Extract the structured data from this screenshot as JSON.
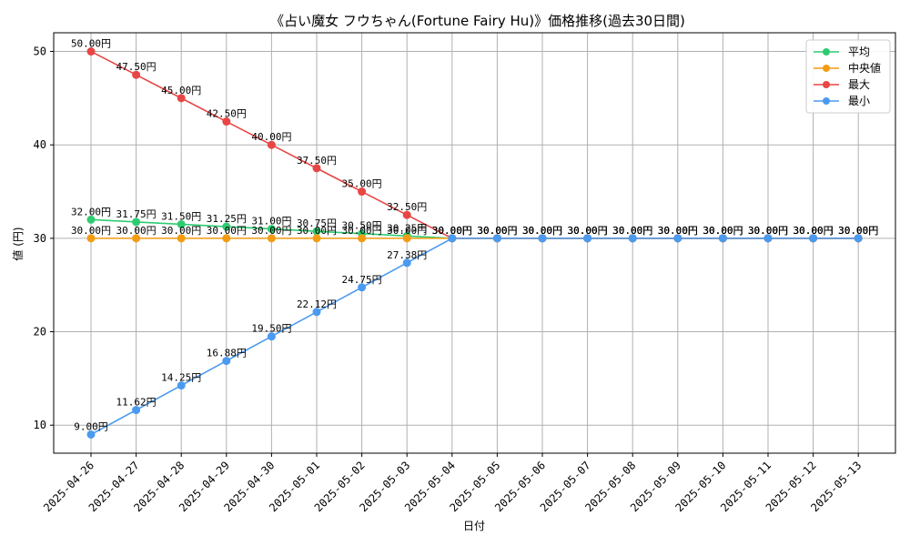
{
  "chart_data": {
    "type": "line",
    "title": "《占い魔女 フウちゃん(Fortune Fairy Hu)》価格推移(過去30日間)",
    "xlabel": "日付",
    "ylabel": "値 (円)",
    "ylim": [
      7,
      52
    ],
    "yticks": [
      10,
      20,
      30,
      40,
      50
    ],
    "grid": true,
    "legend_position": "top-right",
    "categories": [
      "2025-04-26",
      "2025-04-27",
      "2025-04-28",
      "2025-04-29",
      "2025-04-30",
      "2025-05-01",
      "2025-05-02",
      "2025-05-03",
      "2025-05-04",
      "2025-05-05",
      "2025-05-06",
      "2025-05-07",
      "2025-05-08",
      "2025-05-09",
      "2025-05-10",
      "2025-05-11",
      "2025-05-12",
      "2025-05-13"
    ],
    "series": [
      {
        "name": "平均",
        "color": "#2ecc71",
        "values": [
          32.0,
          31.75,
          31.5,
          31.25,
          31.0,
          30.75,
          30.5,
          30.25,
          30.0,
          30.0,
          30.0,
          30.0,
          30.0,
          30.0,
          30.0,
          30.0,
          30.0,
          30.0
        ],
        "labels": [
          "32.00円",
          "31.75円",
          "31.50円",
          "31.25円",
          "31.00円",
          "30.75円",
          "30.50円",
          "30.25円",
          "30.00円",
          "30.00円",
          "30.00円",
          "30.00円",
          "30.00円",
          "30.00円",
          "30.00円",
          "30.00円",
          "30.00円",
          "30.00円"
        ]
      },
      {
        "name": "中央値",
        "color": "#f39c12",
        "values": [
          30.0,
          30.0,
          30.0,
          30.0,
          30.0,
          30.0,
          30.0,
          30.0,
          30.0,
          30.0,
          30.0,
          30.0,
          30.0,
          30.0,
          30.0,
          30.0,
          30.0,
          30.0
        ],
        "labels": [
          "30.00円",
          "30.00円",
          "30.00円",
          "30.00円",
          "30.00円",
          "30.00円",
          "30.00円",
          "30.00円",
          "30.00円",
          "30.00円",
          "30.00円",
          "30.00円",
          "30.00円",
          "30.00円",
          "30.00円",
          "30.00円",
          "30.00円",
          "30.00円"
        ]
      },
      {
        "name": "最大",
        "color": "#e84545",
        "values": [
          50.0,
          47.5,
          45.0,
          42.5,
          40.0,
          37.5,
          35.0,
          32.5,
          30.0,
          30.0,
          30.0,
          30.0,
          30.0,
          30.0,
          30.0,
          30.0,
          30.0,
          30.0
        ],
        "labels": [
          "50.00円",
          "47.50円",
          "45.00円",
          "42.50円",
          "40.00円",
          "37.50円",
          "35.00円",
          "32.50円",
          "30.00円",
          "30.00円",
          "30.00円",
          "30.00円",
          "30.00円",
          "30.00円",
          "30.00円",
          "30.00円",
          "30.00円",
          "30.00円"
        ]
      },
      {
        "name": "最小",
        "color": "#4a9af0",
        "values": [
          9.0,
          11.62,
          14.25,
          16.88,
          19.5,
          22.12,
          24.75,
          27.38,
          30.0,
          30.0,
          30.0,
          30.0,
          30.0,
          30.0,
          30.0,
          30.0,
          30.0,
          30.0
        ],
        "labels": [
          "9.00円",
          "11.62円",
          "14.25円",
          "16.88円",
          "19.50円",
          "22.12円",
          "24.75円",
          "27.38円",
          "30.00円",
          "30.00円",
          "30.00円",
          "30.00円",
          "30.00円",
          "30.00円",
          "30.00円",
          "30.00円",
          "30.00円",
          "30.00円"
        ]
      }
    ]
  }
}
